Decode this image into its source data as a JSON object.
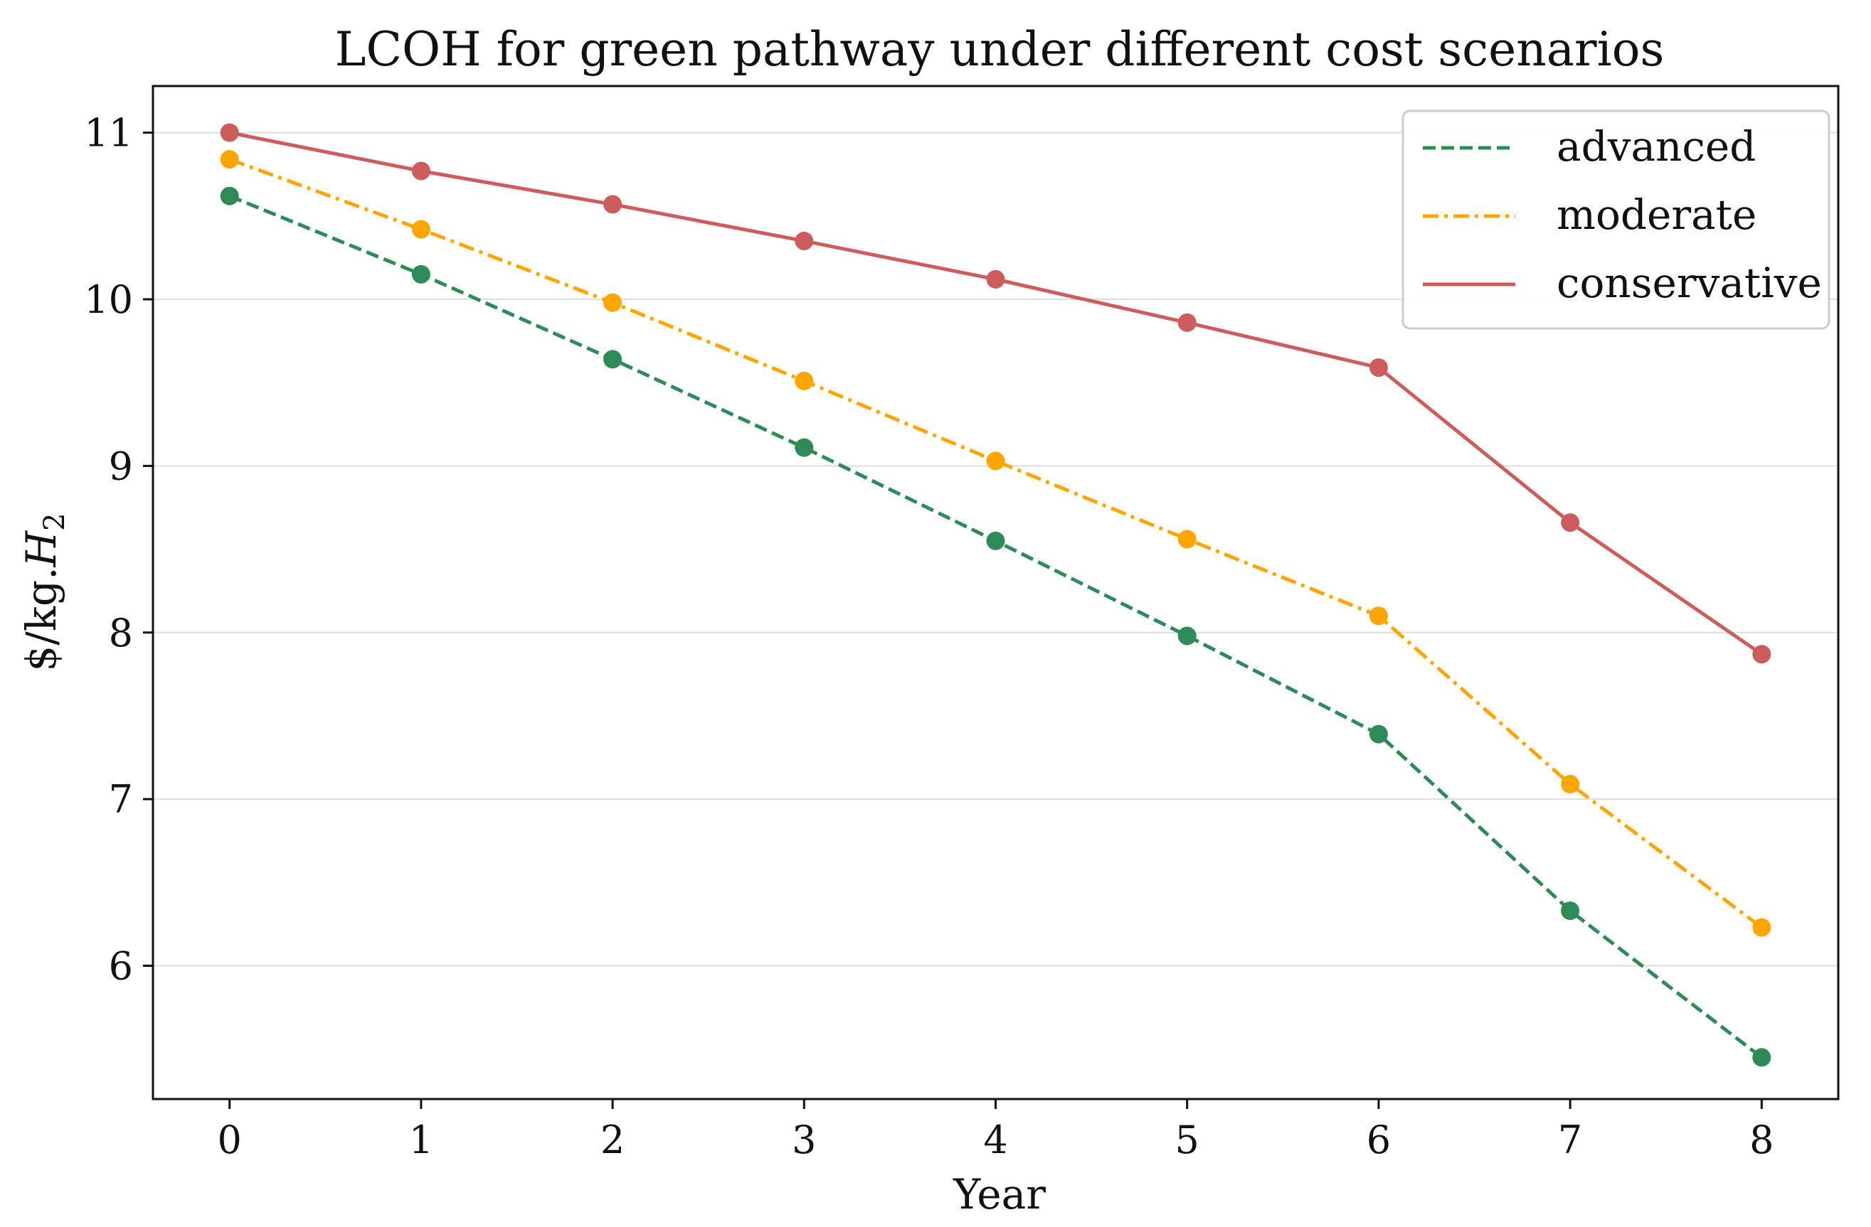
{
  "chart_data": {
    "type": "line",
    "title": "LCOH for green pathway under different cost scenarios",
    "xlabel": "Year",
    "ylabel": "$/kg.",
    "ylabel_main": "H",
    "ylabel_sub": "2",
    "x": [
      0,
      1,
      2,
      3,
      4,
      5,
      6,
      7,
      8
    ],
    "xticks": [
      "0",
      "1",
      "2",
      "3",
      "4",
      "5",
      "6",
      "7",
      "8"
    ],
    "yticks": [
      "6",
      "7",
      "8",
      "9",
      "10",
      "11"
    ],
    "ytick_values": [
      6,
      7,
      8,
      9,
      10,
      11
    ],
    "xlim": [
      -0.4,
      8.4
    ],
    "ylim": [
      5.2,
      11.28
    ],
    "grid": "horizontal",
    "legend_position": "top-right",
    "series": [
      {
        "name": "advanced",
        "color": "#2e8b57",
        "linestyle": "dashed",
        "values": [
          10.62,
          10.15,
          9.64,
          9.11,
          8.55,
          7.98,
          7.39,
          6.33,
          5.45
        ]
      },
      {
        "name": "moderate",
        "color": "#ffa500",
        "linestyle": "dashdot",
        "values": [
          10.84,
          10.42,
          9.98,
          9.51,
          9.03,
          8.56,
          8.1,
          7.09,
          6.23
        ]
      },
      {
        "name": "conservative",
        "color": "#cd5c5c",
        "linestyle": "solid",
        "values": [
          11.0,
          10.77,
          10.57,
          10.35,
          10.12,
          9.86,
          9.59,
          8.66,
          7.87
        ]
      }
    ]
  }
}
